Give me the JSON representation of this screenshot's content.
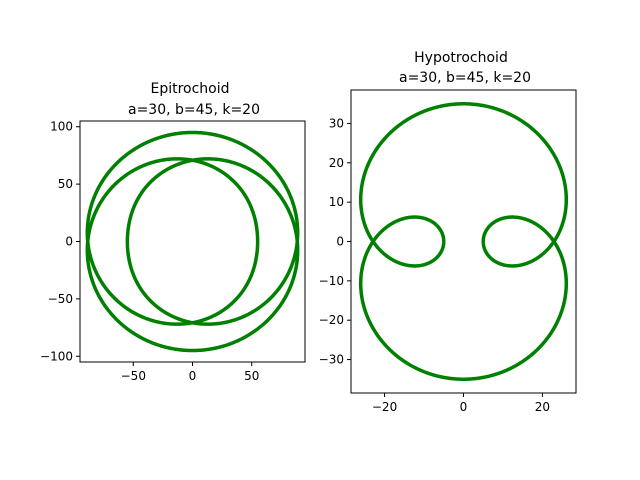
{
  "chart_data": [
    {
      "type": "line",
      "title_line1": "Epitrochoid",
      "title_line2": "a=30, b=45, k=20",
      "xlabel": "",
      "ylabel": "",
      "params": {
        "a": 30,
        "b": 45,
        "k": 20
      },
      "xlim": [
        -95,
        95
      ],
      "ylim": [
        -105,
        105
      ],
      "xticks": [
        -50,
        0,
        50
      ],
      "yticks": [
        -100,
        -50,
        0,
        50,
        100
      ],
      "xtick_labels": [
        "−50",
        "0",
        "50"
      ],
      "ytick_labels": [
        "−100",
        "−50",
        "0",
        "50",
        "100"
      ],
      "series": [
        {
          "color": "#008000",
          "kind": "epitrochoid"
        }
      ],
      "grid": false,
      "legend": "none"
    },
    {
      "type": "line",
      "title_line1": "Hypotrochoid",
      "title_line2": "a=30, b=45, k=20",
      "xlabel": "",
      "ylabel": "",
      "params": {
        "a": 30,
        "b": 45,
        "k": 20
      },
      "xlim": [
        -28.5,
        28.5
      ],
      "ylim": [
        -38.5,
        38.5
      ],
      "xticks": [
        -20,
        0,
        20
      ],
      "yticks": [
        -30,
        -20,
        -10,
        0,
        10,
        20,
        30
      ],
      "xtick_labels": [
        "−20",
        "0",
        "20"
      ],
      "ytick_labels": [
        "−30",
        "−20",
        "−10",
        "0",
        "10",
        "20",
        "30"
      ],
      "series": [
        {
          "color": "#008000",
          "kind": "hypotrochoid"
        }
      ],
      "grid": false,
      "legend": "none"
    }
  ]
}
